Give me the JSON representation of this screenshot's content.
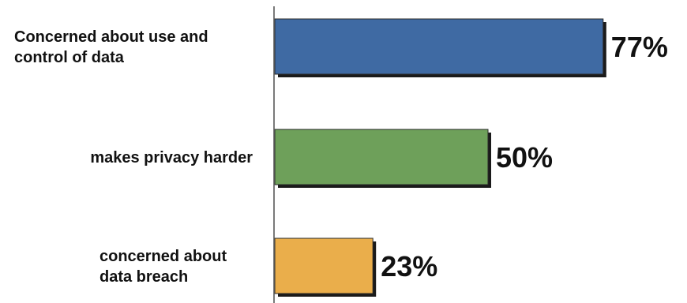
{
  "chart_data": {
    "type": "bar",
    "orientation": "horizontal",
    "categories": [
      [
        "Concerned about use and",
        "control of data"
      ],
      [
        "makes privacy harder"
      ],
      [
        "concerned about",
        "data breach"
      ]
    ],
    "values": [
      77,
      50,
      23
    ],
    "value_labels": [
      "77%",
      "50%",
      "23%"
    ],
    "colors": [
      "#3f6aa3",
      "#6ea05a",
      "#eaae4b"
    ],
    "xlim": [
      0,
      100
    ],
    "title": "",
    "xlabel": "",
    "ylabel": "",
    "grid": false,
    "legend": "none"
  }
}
